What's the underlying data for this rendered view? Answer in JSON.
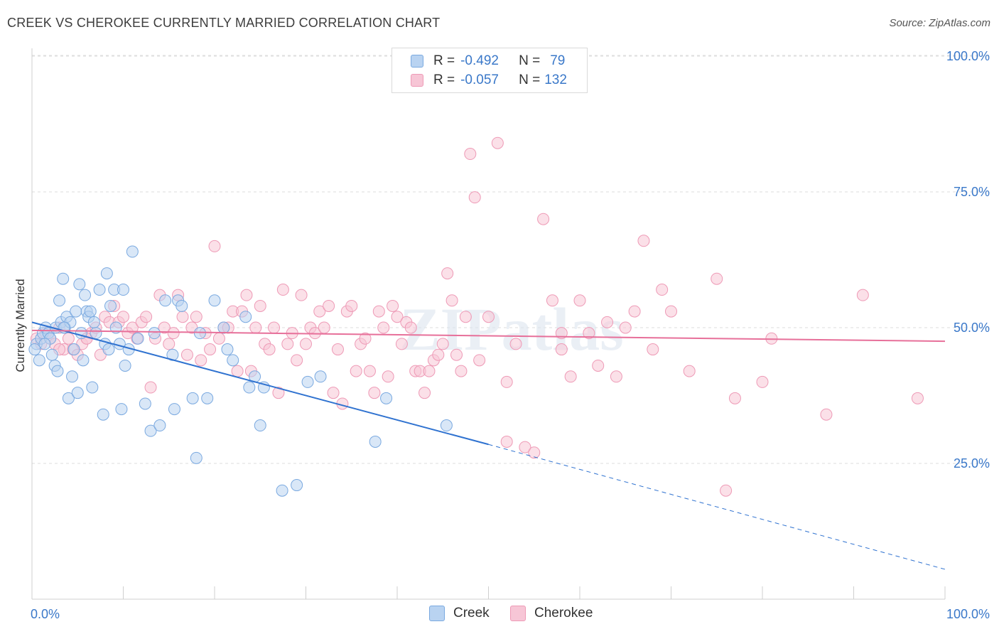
{
  "header": {
    "title": "CREEK VS CHEROKEE CURRENTLY MARRIED CORRELATION CHART",
    "source": "Source: ZipAtlas.com"
  },
  "legend": {
    "creek": {
      "r_label": "R =",
      "r_value": "-0.492",
      "n_label": "N =",
      "n_value": "79"
    },
    "cherokee": {
      "r_label": "R =",
      "r_value": "-0.057",
      "n_label": "N =",
      "n_value": "132"
    }
  },
  "bottom_legend": {
    "creek": "Creek",
    "cherokee": "Cherokee"
  },
  "colors": {
    "creek_fill": "#b9d3f1",
    "creek_stroke": "#7aa9e0",
    "creek_line": "#2f72d0",
    "cherokee_fill": "#f7c6d6",
    "cherokee_stroke": "#ee9ab6",
    "cherokee_line": "#e7709a",
    "tick_label": "#3a78c9",
    "grid": "#dddddd"
  },
  "chart_data": {
    "type": "scatter",
    "title": "CREEK VS CHEROKEE CURRENTLY MARRIED CORRELATION CHART",
    "xlabel": "",
    "ylabel": "Currently Married",
    "xlim": [
      0,
      100
    ],
    "ylim": [
      0,
      105
    ],
    "x_tick_labels": [
      "0.0%",
      "100.0%"
    ],
    "y_ticks": [
      25,
      50,
      75,
      100
    ],
    "y_tick_labels": [
      "25.0%",
      "50.0%",
      "75.0%",
      "100.0%"
    ],
    "grid": true,
    "legend_position": "top-center",
    "watermark": "ZIPatlas",
    "series": [
      {
        "name": "Creek",
        "r": -0.492,
        "n": 79,
        "trend": {
          "x0": 0,
          "y0": 51.0,
          "x1": 50,
          "y1": 28.5,
          "dashed_to_x": 100,
          "dashed_to_y": 5.5
        },
        "points": [
          [
            0.5,
            47
          ],
          [
            0.8,
            44
          ],
          [
            1,
            48
          ],
          [
            1.2,
            49
          ],
          [
            1.5,
            50
          ],
          [
            1.8,
            49
          ],
          [
            2,
            48
          ],
          [
            2.2,
            45
          ],
          [
            2.5,
            43
          ],
          [
            2.6,
            50
          ],
          [
            2.8,
            42
          ],
          [
            3,
            55
          ],
          [
            3.2,
            51
          ],
          [
            3.4,
            59
          ],
          [
            3.6,
            50
          ],
          [
            3.8,
            52
          ],
          [
            4,
            37
          ],
          [
            4.2,
            51
          ],
          [
            4.4,
            41
          ],
          [
            4.6,
            46
          ],
          [
            4.8,
            53
          ],
          [
            5,
            38
          ],
          [
            5.2,
            58
          ],
          [
            5.4,
            49
          ],
          [
            5.6,
            44
          ],
          [
            5.8,
            56
          ],
          [
            6,
            53
          ],
          [
            6.2,
            52
          ],
          [
            6.4,
            53
          ],
          [
            6.6,
            39
          ],
          [
            6.8,
            51
          ],
          [
            7,
            49
          ],
          [
            7.4,
            57
          ],
          [
            7.8,
            34
          ],
          [
            8,
            47
          ],
          [
            8.2,
            60
          ],
          [
            8.4,
            46
          ],
          [
            8.6,
            54
          ],
          [
            9,
            57
          ],
          [
            9.2,
            50
          ],
          [
            9.6,
            47
          ],
          [
            9.8,
            35
          ],
          [
            10,
            57
          ],
          [
            10.2,
            43
          ],
          [
            10.6,
            46
          ],
          [
            11,
            64
          ],
          [
            11.6,
            48
          ],
          [
            12.4,
            36
          ],
          [
            13,
            31
          ],
          [
            13.4,
            49
          ],
          [
            14,
            32
          ],
          [
            14.6,
            55
          ],
          [
            15.4,
            45
          ],
          [
            15.6,
            35
          ],
          [
            16,
            55
          ],
          [
            16.4,
            54
          ],
          [
            17.6,
            37
          ],
          [
            18,
            26
          ],
          [
            18.4,
            49
          ],
          [
            19.2,
            37
          ],
          [
            20,
            55
          ],
          [
            21,
            50
          ],
          [
            21.4,
            46
          ],
          [
            22,
            44
          ],
          [
            23.4,
            52
          ],
          [
            23.8,
            39
          ],
          [
            24.4,
            41
          ],
          [
            25,
            32
          ],
          [
            25.4,
            39
          ],
          [
            27.4,
            20
          ],
          [
            29,
            21
          ],
          [
            30.2,
            40
          ],
          [
            31.6,
            41
          ],
          [
            37.6,
            29
          ],
          [
            38.8,
            37
          ],
          [
            45.4,
            32
          ],
          [
            0.3,
            46
          ],
          [
            1.4,
            47
          ],
          [
            3.5,
            50
          ]
        ]
      },
      {
        "name": "Cherokee",
        "r": -0.057,
        "n": 132,
        "trend": {
          "x0": 0,
          "y0": 49.5,
          "x1": 100,
          "y1": 47.5
        },
        "points": [
          [
            0.5,
            48
          ],
          [
            1,
            47
          ],
          [
            1.5,
            49
          ],
          [
            2,
            48
          ],
          [
            2.5,
            47
          ],
          [
            3,
            50
          ],
          [
            3.5,
            46
          ],
          [
            4,
            48
          ],
          [
            4.5,
            46
          ],
          [
            5,
            45
          ],
          [
            5.5,
            47
          ],
          [
            6,
            48
          ],
          [
            6.5,
            49
          ],
          [
            7,
            50
          ],
          [
            7.5,
            45
          ],
          [
            8,
            52
          ],
          [
            8.5,
            51
          ],
          [
            9,
            54
          ],
          [
            9.5,
            51
          ],
          [
            10,
            52
          ],
          [
            10.5,
            49
          ],
          [
            11,
            50
          ],
          [
            11.5,
            48
          ],
          [
            12,
            51
          ],
          [
            12.5,
            52
          ],
          [
            13,
            39
          ],
          [
            13.5,
            48
          ],
          [
            14,
            56
          ],
          [
            14.5,
            50
          ],
          [
            15,
            47
          ],
          [
            15.5,
            49
          ],
          [
            16,
            56
          ],
          [
            16.5,
            52
          ],
          [
            17,
            45
          ],
          [
            17.5,
            50
          ],
          [
            18,
            52
          ],
          [
            18.5,
            44
          ],
          [
            19,
            49
          ],
          [
            19.5,
            46
          ],
          [
            20,
            65
          ],
          [
            20.5,
            48
          ],
          [
            21,
            50
          ],
          [
            21.5,
            50
          ],
          [
            22,
            53
          ],
          [
            22.5,
            42
          ],
          [
            23,
            53
          ],
          [
            23.5,
            56
          ],
          [
            24,
            42
          ],
          [
            24.5,
            50
          ],
          [
            25,
            54
          ],
          [
            25.5,
            47
          ],
          [
            26,
            46
          ],
          [
            26.5,
            50
          ],
          [
            27,
            38
          ],
          [
            27.5,
            57
          ],
          [
            28,
            47
          ],
          [
            28.5,
            49
          ],
          [
            29,
            44
          ],
          [
            29.5,
            56
          ],
          [
            30,
            47
          ],
          [
            30.5,
            50
          ],
          [
            31,
            49
          ],
          [
            31.5,
            53
          ],
          [
            32,
            50
          ],
          [
            32.5,
            54
          ],
          [
            33,
            38
          ],
          [
            33.5,
            46
          ],
          [
            34,
            36
          ],
          [
            34.5,
            53
          ],
          [
            35,
            54
          ],
          [
            35.5,
            42
          ],
          [
            36,
            47
          ],
          [
            36.5,
            48
          ],
          [
            37,
            42
          ],
          [
            37.5,
            38
          ],
          [
            38,
            53
          ],
          [
            38.5,
            50
          ],
          [
            39,
            41
          ],
          [
            39.5,
            54
          ],
          [
            40,
            52
          ],
          [
            40.5,
            47
          ],
          [
            41,
            51
          ],
          [
            41.5,
            50
          ],
          [
            42,
            42
          ],
          [
            42.5,
            42
          ],
          [
            43,
            38
          ],
          [
            43.5,
            42
          ],
          [
            44,
            44
          ],
          [
            44.5,
            45
          ],
          [
            45,
            47
          ],
          [
            45.5,
            60
          ],
          [
            46,
            55
          ],
          [
            46.5,
            45
          ],
          [
            47,
            42
          ],
          [
            47.5,
            52
          ],
          [
            48,
            82
          ],
          [
            48.5,
            74
          ],
          [
            49,
            44
          ],
          [
            50,
            52
          ],
          [
            51,
            84
          ],
          [
            52,
            40
          ],
          [
            53,
            47
          ],
          [
            54,
            28
          ],
          [
            55,
            27
          ],
          [
            56,
            70
          ],
          [
            57,
            55
          ],
          [
            58,
            46
          ],
          [
            59,
            41
          ],
          [
            60,
            55
          ],
          [
            61,
            49
          ],
          [
            62,
            43
          ],
          [
            63,
            51
          ],
          [
            64,
            41
          ],
          [
            65,
            50
          ],
          [
            66,
            53
          ],
          [
            67,
            66
          ],
          [
            68,
            46
          ],
          [
            69,
            57
          ],
          [
            72,
            42
          ],
          [
            75,
            59
          ],
          [
            77,
            37
          ],
          [
            80,
            40
          ],
          [
            81,
            48
          ],
          [
            87,
            34
          ],
          [
            91,
            56
          ],
          [
            97,
            37
          ],
          [
            76,
            20
          ],
          [
            58,
            49
          ],
          [
            70,
            53
          ],
          [
            52,
            29
          ],
          [
            3,
            46
          ],
          [
            6,
            48
          ]
        ]
      }
    ]
  }
}
